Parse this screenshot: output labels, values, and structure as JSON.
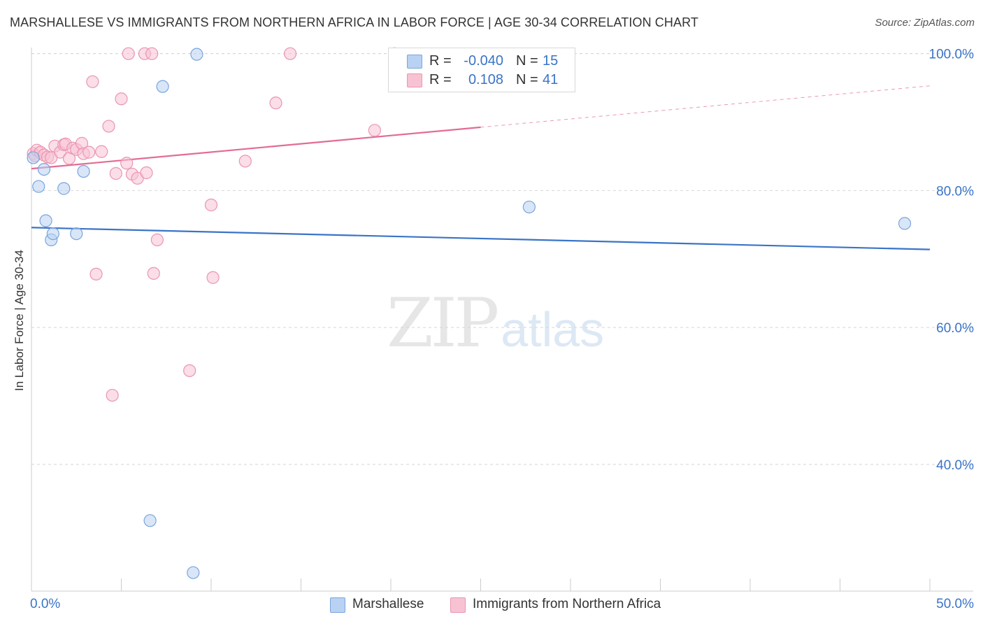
{
  "header": {
    "title": "MARSHALLESE VS IMMIGRANTS FROM NORTHERN AFRICA IN LABOR FORCE | AGE 30-34 CORRELATION CHART",
    "source": "Source: ZipAtlas.com"
  },
  "watermark": {
    "zip": "ZIP",
    "atlas": "atlas"
  },
  "colors": {
    "blue": "#3a74c7",
    "blue_fill": "#b9d2f3",
    "blue_stroke": "#7aa5dc",
    "pink": "#e36b96",
    "pink_fill": "#f7c3d3",
    "pink_stroke": "#ea95b1",
    "grid": "#d5d5d5",
    "axis_text": "#3a74c7"
  },
  "legend": {
    "rows": [
      {
        "r_label": "R =",
        "r_value": "-0.040",
        "n_label": "N =",
        "n_value": "15"
      },
      {
        "r_label": "R =",
        "r_value": "0.108",
        "n_label": "N =",
        "n_value": "41"
      }
    ],
    "bottom": [
      "Marshallese",
      "Immigrants from Northern Africa"
    ]
  },
  "chart_data": {
    "type": "scatter",
    "title": "MARSHALLESE VS IMMIGRANTS FROM NORTHERN AFRICA IN LABOR FORCE | AGE 30-34 CORRELATION CHART",
    "xlabel": "",
    "ylabel": "In Labor Force | Age 30-34",
    "xlim": [
      0,
      50
    ],
    "ylim": [
      21.5,
      101.5
    ],
    "x_tick_labels": [
      "0.0%",
      "50.0%"
    ],
    "y_ticks": [
      40,
      60,
      80,
      100
    ],
    "y_tick_labels": [
      "40.0%",
      "60.0%",
      "80.0%",
      "100.0%"
    ],
    "grid": true,
    "series": [
      {
        "name": "Marshallese",
        "r": -0.04,
        "n": 15,
        "points": [
          [
            0.1,
            84.8
          ],
          [
            0.4,
            80.6
          ],
          [
            0.7,
            83.1
          ],
          [
            0.8,
            75.6
          ],
          [
            1.1,
            72.8
          ],
          [
            1.2,
            73.7
          ],
          [
            1.8,
            80.3
          ],
          [
            2.5,
            73.7
          ],
          [
            2.9,
            82.8
          ],
          [
            6.6,
            31.8
          ],
          [
            7.3,
            95.2
          ],
          [
            9.0,
            24.2
          ],
          [
            9.2,
            99.9
          ],
          [
            27.7,
            77.6
          ],
          [
            48.6,
            75.2
          ]
        ],
        "trend": {
          "x": [
            0,
            50
          ],
          "y": [
            74.6,
            71.4
          ],
          "dashed_from": null
        }
      },
      {
        "name": "Immigrants from Northern Africa",
        "r": 0.108,
        "n": 41,
        "points": [
          [
            0.1,
            85.4
          ],
          [
            0.2,
            85.1
          ],
          [
            0.3,
            85.9
          ],
          [
            0.5,
            85.6
          ],
          [
            0.7,
            85.2
          ],
          [
            0.9,
            84.9
          ],
          [
            1.1,
            84.8
          ],
          [
            1.3,
            86.5
          ],
          [
            1.6,
            85.6
          ],
          [
            1.8,
            86.7
          ],
          [
            1.9,
            86.8
          ],
          [
            2.1,
            84.7
          ],
          [
            2.3,
            86.2
          ],
          [
            2.5,
            86.0
          ],
          [
            2.8,
            86.9
          ],
          [
            2.9,
            85.4
          ],
          [
            3.2,
            85.6
          ],
          [
            3.4,
            95.9
          ],
          [
            3.6,
            67.8
          ],
          [
            3.9,
            85.7
          ],
          [
            4.3,
            89.4
          ],
          [
            4.5,
            50.1
          ],
          [
            4.7,
            82.5
          ],
          [
            5.0,
            93.4
          ],
          [
            5.3,
            84.0
          ],
          [
            5.4,
            100.0
          ],
          [
            5.6,
            82.4
          ],
          [
            5.9,
            81.8
          ],
          [
            6.3,
            100.0
          ],
          [
            6.4,
            82.6
          ],
          [
            6.7,
            100.0
          ],
          [
            6.8,
            67.9
          ],
          [
            7.0,
            72.8
          ],
          [
            8.8,
            53.7
          ],
          [
            10.0,
            77.9
          ],
          [
            10.1,
            67.3
          ],
          [
            11.9,
            84.3
          ],
          [
            13.6,
            92.8
          ],
          [
            14.4,
            100.0
          ],
          [
            19.1,
            88.8
          ],
          [
            20.2,
            100.0
          ]
        ],
        "trend": {
          "x": [
            0,
            50
          ],
          "y": [
            83.2,
            95.3
          ],
          "dashed_from": 25
        }
      }
    ]
  }
}
